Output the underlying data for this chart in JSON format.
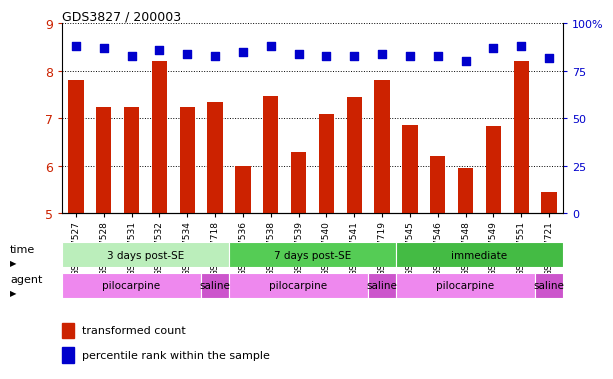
{
  "title": "GDS3827 / 200003",
  "samples": [
    "GSM367527",
    "GSM367528",
    "GSM367531",
    "GSM367532",
    "GSM367534",
    "GSM367718",
    "GSM367536",
    "GSM367538",
    "GSM367539",
    "GSM367540",
    "GSM367541",
    "GSM367719",
    "GSM367545",
    "GSM367546",
    "GSM367548",
    "GSM367549",
    "GSM367551",
    "GSM367721"
  ],
  "transformed_count": [
    7.8,
    7.25,
    7.25,
    8.2,
    7.25,
    7.35,
    6.0,
    7.48,
    6.3,
    7.1,
    7.45,
    7.8,
    6.87,
    6.2,
    5.95,
    6.85,
    8.2,
    5.45
  ],
  "percentile_rank": [
    88,
    87,
    83,
    86,
    84,
    83,
    85,
    88,
    84,
    83,
    83,
    84,
    83,
    83,
    80,
    87,
    88,
    82
  ],
  "ylim_left": [
    5,
    9
  ],
  "ylim_right": [
    0,
    100
  ],
  "yticks_left": [
    5,
    6,
    7,
    8,
    9
  ],
  "yticks_right": [
    0,
    25,
    50,
    75,
    100
  ],
  "ytick_labels_right": [
    "0",
    "25",
    "50",
    "75",
    "100%"
  ],
  "bar_color": "#cc2200",
  "dot_color": "#0000cc",
  "grid_color": "#000000",
  "bg_color": "#ffffff",
  "tick_label_color_left": "#cc2200",
  "tick_label_color_right": "#0000cc",
  "time_groups": [
    {
      "label": "3 days post-SE",
      "start": 0,
      "end": 5,
      "color": "#bbeebb"
    },
    {
      "label": "7 days post-SE",
      "start": 6,
      "end": 11,
      "color": "#55cc55"
    },
    {
      "label": "immediate",
      "start": 12,
      "end": 17,
      "color": "#44bb44"
    }
  ],
  "agent_groups": [
    {
      "label": "pilocarpine",
      "start": 0,
      "end": 4,
      "color": "#ee88ee"
    },
    {
      "label": "saline",
      "start": 5,
      "end": 5,
      "color": "#cc55cc"
    },
    {
      "label": "pilocarpine",
      "start": 6,
      "end": 10,
      "color": "#ee88ee"
    },
    {
      "label": "saline",
      "start": 11,
      "end": 11,
      "color": "#cc55cc"
    },
    {
      "label": "pilocarpine",
      "start": 12,
      "end": 16,
      "color": "#ee88ee"
    },
    {
      "label": "saline",
      "start": 17,
      "end": 17,
      "color": "#cc55cc"
    }
  ],
  "legend_bar_label": "transformed count",
  "legend_dot_label": "percentile rank within the sample",
  "bar_width": 0.55,
  "dot_size": 40,
  "time_label": "time",
  "agent_label": "agent"
}
